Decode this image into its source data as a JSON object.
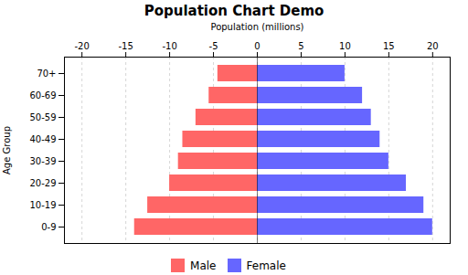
{
  "chart_data": {
    "type": "bar",
    "orientation": "horizontal",
    "title": "Population Chart Demo",
    "xlabel": "Population (millions)",
    "ylabel": "Age Group",
    "categories": [
      "0-9",
      "10-19",
      "20-29",
      "30-39",
      "40-49",
      "50-59",
      "60-69",
      "70+"
    ],
    "series": [
      {
        "name": "Male",
        "color": "#FF6666",
        "values": [
          -14.0,
          -12.5,
          -10.0,
          -9.0,
          -8.5,
          -7.0,
          -5.5,
          -4.5
        ]
      },
      {
        "name": "Female",
        "color": "#6666FF",
        "values": [
          20.0,
          19.0,
          17.0,
          15.0,
          14.0,
          13.0,
          12.0,
          10.0
        ]
      }
    ],
    "xlim": [
      -22,
      22
    ],
    "xticks": [
      -20,
      -15,
      -10,
      -5,
      0,
      5,
      10,
      15,
      20
    ],
    "grid": true,
    "legend": "bottom"
  }
}
